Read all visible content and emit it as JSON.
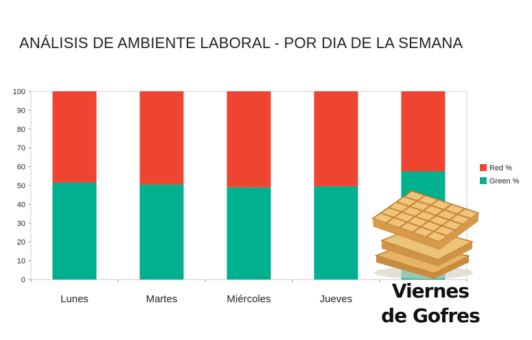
{
  "chart_data": {
    "type": "bar",
    "stacked": true,
    "title": "ANÁLISIS DE AMBIENTE LABORAL - POR DIA DE LA SEMANA",
    "categories": [
      "Lunes",
      "Martes",
      "Miércoles",
      "Jueves",
      "Viernes de Gofres"
    ],
    "series": [
      {
        "name": "Green %",
        "color": "#00b08e",
        "values": [
          51.5,
          50.5,
          49,
          49.5,
          57.5
        ]
      },
      {
        "name": "Red %",
        "color": "#ee4530",
        "values": [
          48.5,
          49.5,
          51,
          50.5,
          42.5
        ]
      }
    ],
    "ylim": [
      0,
      100
    ],
    "yticks": [
      0,
      10,
      20,
      30,
      40,
      50,
      60,
      70,
      80,
      90,
      100
    ],
    "legend": "right",
    "grid": false,
    "xlabel": "",
    "ylabel": ""
  },
  "waffle_caption": [
    "Viernes",
    "de Gofres"
  ],
  "waffle_image": "waffle-stack-image"
}
